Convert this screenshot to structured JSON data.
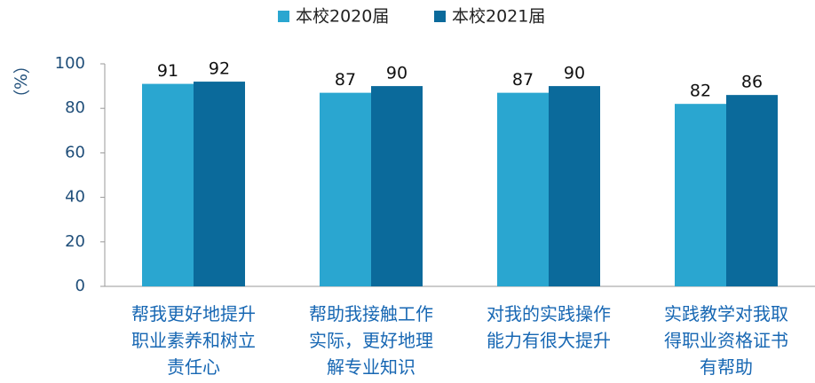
{
  "chart_data": {
    "type": "bar",
    "ylabel": "（%）",
    "categories": [
      "帮我更好地提升职业素养和树立责任心",
      "帮助我接触工作实际，更好地理解专业知识",
      "对我的实践操作能力有很大提升",
      "实践教学对我取得职业资格证书有帮助"
    ],
    "series": [
      {
        "name": "本校2020届",
        "color": "#2aa6d0",
        "values": [
          91,
          87,
          87,
          82
        ]
      },
      {
        "name": "本校2021届",
        "color": "#0b6a9b",
        "values": [
          92,
          90,
          90,
          86
        ]
      }
    ],
    "ylim": [
      0,
      100
    ],
    "yticks": [
      0,
      20,
      40,
      60,
      80,
      100
    ],
    "legend": "top"
  }
}
